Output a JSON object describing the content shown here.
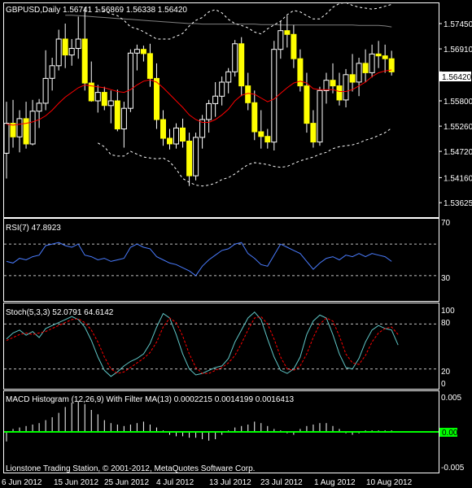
{
  "header": {
    "title": "GBPUSD,Daily  1.56741 1.56869 1.56338 1.56420"
  },
  "rsi_panel": {
    "title": "RSI(7) 47.8923",
    "levels": [
      "70",
      "30"
    ]
  },
  "stoch_panel": {
    "title": "Stoch(5,3,3) 52.0791 64.6142",
    "levels": [
      "100",
      "80",
      "20",
      "0"
    ]
  },
  "macd_panel": {
    "title": "MACD Histogram (12,26,9) With Filter MA(13) 0.0002215 0.0014199 0.0016413",
    "levels": [
      "0.005",
      "0.00",
      "-0.005"
    ]
  },
  "footer": {
    "copyright": "Lionstone Trading Station, © 2001-2012, MetaQuotes Software Corp."
  },
  "x_axis_labels": [
    "6 Jun 2012",
    "15 Jun 2012",
    "25 Jun 2012",
    "4 Jul 2012",
    "13 Jul 2012",
    "23 Jul 2012",
    "1 Aug 2012",
    "10 Aug 2012"
  ],
  "price_axis_labels": [
    "1.57450",
    "1.56910",
    "1.56420",
    "1.55800",
    "1.55260",
    "1.54720",
    "1.54160",
    "1.53625"
  ],
  "current_price": "1.56420",
  "colors": {
    "background": "#000000",
    "candle": "#ffff00",
    "ma_red": "#ff0000",
    "ma_gray": "#808080",
    "rsi_line": "#4a7cff",
    "stoch_main": "#5fc6c6",
    "stoch_signal": "#ff0000",
    "macd_signal": "#00ff00"
  },
  "chart_data": [
    {
      "type": "candlestick",
      "title": "GBPUSD,Daily",
      "ylim": [
        1.5335,
        1.5785
      ],
      "x_start_label": "6 Jun 2012",
      "candles": [
        {
          "o": 1.5468,
          "h": 1.5578,
          "l": 1.5414,
          "c": 1.5532
        },
        {
          "o": 1.5532,
          "h": 1.5582,
          "l": 1.548,
          "c": 1.5503
        },
        {
          "o": 1.5503,
          "h": 1.556,
          "l": 1.547,
          "c": 1.5542
        },
        {
          "o": 1.5542,
          "h": 1.5578,
          "l": 1.5478,
          "c": 1.5488
        },
        {
          "o": 1.5488,
          "h": 1.5582,
          "l": 1.5485,
          "c": 1.5558
        },
        {
          "o": 1.5558,
          "h": 1.5584,
          "l": 1.5522,
          "c": 1.5575
        },
        {
          "o": 1.5575,
          "h": 1.5688,
          "l": 1.556,
          "c": 1.5628
        },
        {
          "o": 1.5628,
          "h": 1.5672,
          "l": 1.5602,
          "c": 1.5655
        },
        {
          "o": 1.5655,
          "h": 1.5732,
          "l": 1.5645,
          "c": 1.5712
        },
        {
          "o": 1.5712,
          "h": 1.5745,
          "l": 1.565,
          "c": 1.5678
        },
        {
          "o": 1.5678,
          "h": 1.5712,
          "l": 1.5655,
          "c": 1.5692
        },
        {
          "o": 1.5692,
          "h": 1.576,
          "l": 1.567,
          "c": 1.5712
        },
        {
          "o": 1.5712,
          "h": 1.578,
          "l": 1.5602,
          "c": 1.5618
        },
        {
          "o": 1.5618,
          "h": 1.5664,
          "l": 1.5578,
          "c": 1.558
        },
        {
          "o": 1.558,
          "h": 1.5614,
          "l": 1.5555,
          "c": 1.5598
        },
        {
          "o": 1.5598,
          "h": 1.561,
          "l": 1.556,
          "c": 1.557
        },
        {
          "o": 1.557,
          "h": 1.5602,
          "l": 1.5532,
          "c": 1.558
        },
        {
          "o": 1.558,
          "h": 1.5604,
          "l": 1.5515,
          "c": 1.552
        },
        {
          "o": 1.552,
          "h": 1.5578,
          "l": 1.548,
          "c": 1.5564
        },
        {
          "o": 1.5564,
          "h": 1.569,
          "l": 1.5556,
          "c": 1.5682
        },
        {
          "o": 1.5682,
          "h": 1.57,
          "l": 1.5645,
          "c": 1.569
        },
        {
          "o": 1.569,
          "h": 1.5698,
          "l": 1.5664,
          "c": 1.5681
        },
        {
          "o": 1.5681,
          "h": 1.5702,
          "l": 1.561,
          "c": 1.5628
        },
        {
          "o": 1.5628,
          "h": 1.566,
          "l": 1.552,
          "c": 1.554
        },
        {
          "o": 1.554,
          "h": 1.556,
          "l": 1.5484,
          "c": 1.55
        },
        {
          "o": 1.55,
          "h": 1.552,
          "l": 1.5476,
          "c": 1.5488
        },
        {
          "o": 1.5488,
          "h": 1.5532,
          "l": 1.5478,
          "c": 1.5522
        },
        {
          "o": 1.5522,
          "h": 1.5542,
          "l": 1.548,
          "c": 1.5494
        },
        {
          "o": 1.5494,
          "h": 1.5512,
          "l": 1.5398,
          "c": 1.542
        },
        {
          "o": 1.542,
          "h": 1.5512,
          "l": 1.541,
          "c": 1.5502
        },
        {
          "o": 1.5502,
          "h": 1.555,
          "l": 1.5478,
          "c": 1.554
        },
        {
          "o": 1.554,
          "h": 1.5582,
          "l": 1.5512,
          "c": 1.5574
        },
        {
          "o": 1.5574,
          "h": 1.562,
          "l": 1.5546,
          "c": 1.559
        },
        {
          "o": 1.559,
          "h": 1.5632,
          "l": 1.557,
          "c": 1.562
        },
        {
          "o": 1.562,
          "h": 1.565,
          "l": 1.5596,
          "c": 1.5642
        },
        {
          "o": 1.5642,
          "h": 1.571,
          "l": 1.5632,
          "c": 1.5702
        },
        {
          "o": 1.5702,
          "h": 1.5716,
          "l": 1.559,
          "c": 1.5612
        },
        {
          "o": 1.5612,
          "h": 1.564,
          "l": 1.556,
          "c": 1.5576
        },
        {
          "o": 1.5576,
          "h": 1.5602,
          "l": 1.5496,
          "c": 1.5514
        },
        {
          "o": 1.5514,
          "h": 1.556,
          "l": 1.5478,
          "c": 1.5504
        },
        {
          "o": 1.5504,
          "h": 1.552,
          "l": 1.5478,
          "c": 1.5492
        },
        {
          "o": 1.5492,
          "h": 1.5708,
          "l": 1.5474,
          "c": 1.569
        },
        {
          "o": 1.569,
          "h": 1.575,
          "l": 1.567,
          "c": 1.573
        },
        {
          "o": 1.573,
          "h": 1.5762,
          "l": 1.5694,
          "c": 1.5722
        },
        {
          "o": 1.5722,
          "h": 1.5742,
          "l": 1.565,
          "c": 1.567
        },
        {
          "o": 1.567,
          "h": 1.569,
          "l": 1.56,
          "c": 1.5612
        },
        {
          "o": 1.5612,
          "h": 1.564,
          "l": 1.5512,
          "c": 1.5532
        },
        {
          "o": 1.5532,
          "h": 1.556,
          "l": 1.548,
          "c": 1.5492
        },
        {
          "o": 1.5492,
          "h": 1.561,
          "l": 1.5484,
          "c": 1.5602
        },
        {
          "o": 1.5602,
          "h": 1.564,
          "l": 1.5574,
          "c": 1.5624
        },
        {
          "o": 1.5624,
          "h": 1.566,
          "l": 1.5596,
          "c": 1.5612
        },
        {
          "o": 1.5612,
          "h": 1.564,
          "l": 1.557,
          "c": 1.5582
        },
        {
          "o": 1.5582,
          "h": 1.5648,
          "l": 1.5566,
          "c": 1.5636
        },
        {
          "o": 1.5636,
          "h": 1.568,
          "l": 1.56,
          "c": 1.562
        },
        {
          "o": 1.562,
          "h": 1.5672,
          "l": 1.559,
          "c": 1.566
        },
        {
          "o": 1.566,
          "h": 1.569,
          "l": 1.562,
          "c": 1.564
        },
        {
          "o": 1.564,
          "h": 1.57,
          "l": 1.563,
          "c": 1.568
        },
        {
          "o": 1.568,
          "h": 1.5708,
          "l": 1.565,
          "c": 1.5676
        },
        {
          "o": 1.5676,
          "h": 1.57,
          "l": 1.564,
          "c": 1.567
        },
        {
          "o": 1.567,
          "h": 1.5687,
          "l": 1.5634,
          "c": 1.5642
        }
      ],
      "ma_red": [
        1.553,
        1.5528,
        1.553,
        1.5532,
        1.5535,
        1.554,
        1.5548,
        1.556,
        1.5575,
        1.5588,
        1.5598,
        1.5608,
        1.5614,
        1.5612,
        1.561,
        1.5608,
        1.5604,
        1.56,
        1.5598,
        1.5604,
        1.5614,
        1.5622,
        1.5625,
        1.562,
        1.5608,
        1.5594,
        1.558,
        1.5566,
        1.555,
        1.554,
        1.5534,
        1.5534,
        1.554,
        1.555,
        1.5562,
        1.558,
        1.5592,
        1.5596,
        1.5594,
        1.5586,
        1.5578,
        1.5584,
        1.5596,
        1.5608,
        1.5618,
        1.5622,
        1.5618,
        1.5606,
        1.5604,
        1.5604,
        1.5604,
        1.56,
        1.56,
        1.5604,
        1.5612,
        1.562,
        1.5632,
        1.564,
        1.5644,
        1.5646
      ],
      "ma_gray_start": 9,
      "ma_gray": [
        1.5763,
        1.5763,
        1.5762,
        1.5761,
        1.576,
        1.5759,
        1.5758,
        1.5757,
        1.5756,
        1.5755,
        1.5754,
        1.5753,
        1.5752,
        1.5751,
        1.575,
        1.5749,
        1.5748,
        1.5747,
        1.5746,
        1.5745,
        1.5745,
        1.5744,
        1.5744,
        1.5744,
        1.5744,
        1.5744,
        1.5744,
        1.5744,
        1.5744,
        1.5744,
        1.5743,
        1.5743,
        1.5743,
        1.5742,
        1.5742,
        1.5742,
        1.5742,
        1.5742,
        1.5742,
        1.5742,
        1.5742,
        1.5742,
        1.5742,
        1.5742,
        1.5742,
        1.5741,
        1.5741,
        1.5741,
        1.5741,
        1.574,
        1.5738
      ],
      "band_upper_start": 14,
      "band_upper": [
        1.5775,
        1.5772,
        1.5766,
        1.5762,
        1.5752,
        1.5738,
        1.5734,
        1.5728,
        1.572,
        1.5712,
        1.5712,
        1.5712,
        1.5718,
        1.5724,
        1.574,
        1.5752,
        1.5758,
        1.577,
        1.5775,
        1.5768,
        1.5754,
        1.5745,
        1.5741,
        1.5736,
        1.5727,
        1.5723,
        1.5734,
        1.5742,
        1.575,
        1.5764,
        1.5773,
        1.577,
        1.5762,
        1.5755,
        1.5755,
        1.5766,
        1.578,
        1.5788,
        1.579,
        1.5784,
        1.578,
        1.5778,
        1.5776,
        1.5778,
        1.5782,
        1.5786
      ],
      "band_lower_start": 14,
      "band_lower": [
        1.549,
        1.5482,
        1.5465,
        1.5462,
        1.5462,
        1.5472,
        1.5466,
        1.546,
        1.5458,
        1.5456,
        1.5458,
        1.545,
        1.5434,
        1.5414,
        1.5406,
        1.54,
        1.5398,
        1.54,
        1.5404,
        1.5412,
        1.5416,
        1.5424,
        1.5434,
        1.5444,
        1.5448,
        1.5446,
        1.5444,
        1.544,
        1.5438,
        1.544,
        1.5446,
        1.5452,
        1.5456,
        1.546,
        1.5466,
        1.547,
        1.5478,
        1.5482,
        1.5484,
        1.5486,
        1.549,
        1.5496,
        1.55,
        1.5506,
        1.5512,
        1.5522
      ]
    },
    {
      "type": "line",
      "title": "RSI(7)",
      "ylim": [
        0,
        100
      ],
      "levels": [
        70,
        30
      ],
      "values": [
        48,
        46,
        52,
        50,
        54,
        56,
        68,
        70,
        72,
        68,
        66,
        70,
        56,
        54,
        50,
        52,
        48,
        50,
        52,
        66,
        70,
        66,
        64,
        54,
        50,
        46,
        44,
        40,
        36,
        30,
        42,
        50,
        56,
        62,
        64,
        70,
        72,
        58,
        52,
        44,
        42,
        56,
        70,
        66,
        62,
        58,
        48,
        38,
        46,
        52,
        54,
        50,
        56,
        54,
        58,
        54,
        58,
        56,
        54,
        48
      ]
    },
    {
      "type": "line",
      "title": "Stoch(5,3,3)",
      "ylim": [
        0,
        100
      ],
      "levels": [
        80,
        20
      ],
      "series": [
        {
          "values": [
            60,
            68,
            72,
            65,
            70,
            62,
            74,
            78,
            82,
            86,
            90,
            86,
            76,
            58,
            36,
            18,
            10,
            16,
            24,
            30,
            34,
            40,
            54,
            76,
            94,
            88,
            66,
            40,
            20,
            12,
            14,
            18,
            22,
            24,
            34,
            56,
            72,
            88,
            96,
            86,
            60,
            36,
            18,
            14,
            20,
            36,
            66,
            84,
            92,
            88,
            66,
            40,
            22,
            20,
            34,
            56,
            72,
            78,
            74,
            72,
            52
          ]
        },
        {
          "values": [
            58,
            62,
            66,
            68,
            66,
            68,
            70,
            74,
            78,
            82,
            86,
            87,
            82,
            72,
            56,
            36,
            20,
            14,
            16,
            22,
            28,
            34,
            42,
            56,
            76,
            88,
            82,
            64,
            40,
            22,
            14,
            14,
            18,
            22,
            28,
            38,
            54,
            72,
            88,
            90,
            80,
            60,
            36,
            20,
            18,
            24,
            40,
            62,
            80,
            88,
            84,
            64,
            40,
            28,
            26,
            38,
            56,
            68,
            74,
            76,
            66
          ]
        }
      ]
    },
    {
      "type": "bar",
      "title": "MACD Histogram (12,26,9) With Filter MA(13)",
      "ylim": [
        -0.005,
        0.005
      ],
      "values": [
        -0.0013,
        0.0004,
        0.0006,
        0.0008,
        0.001,
        0.0012,
        0.0016,
        0.002,
        0.0026,
        0.0034,
        0.004,
        0.0042,
        0.0038,
        0.003,
        0.0024,
        0.0016,
        0.0012,
        0.001,
        0.0008,
        0.001,
        0.0012,
        0.0014,
        0.001,
        0.0006,
        0.0002,
        -0.0004,
        -0.0006,
        -0.0006,
        -0.0008,
        -0.0008,
        -0.001,
        -0.0012,
        -0.001,
        -0.0004,
        0.0002,
        0.0006,
        0.0008,
        0.001,
        0.0014,
        0.0012,
        0.0008,
        0.0004,
        0.0002,
        -0.0002,
        -0.0004,
        0.0004,
        0.0008,
        0.001,
        0.0012,
        0.0012,
        0.0008,
        0.0004,
        -0.0002,
        -0.0004,
        -0.0002,
        0.0002,
        0.0002,
        0.0002,
        0.0002,
        0.0002
      ],
      "signal_value": 0.0
    }
  ]
}
